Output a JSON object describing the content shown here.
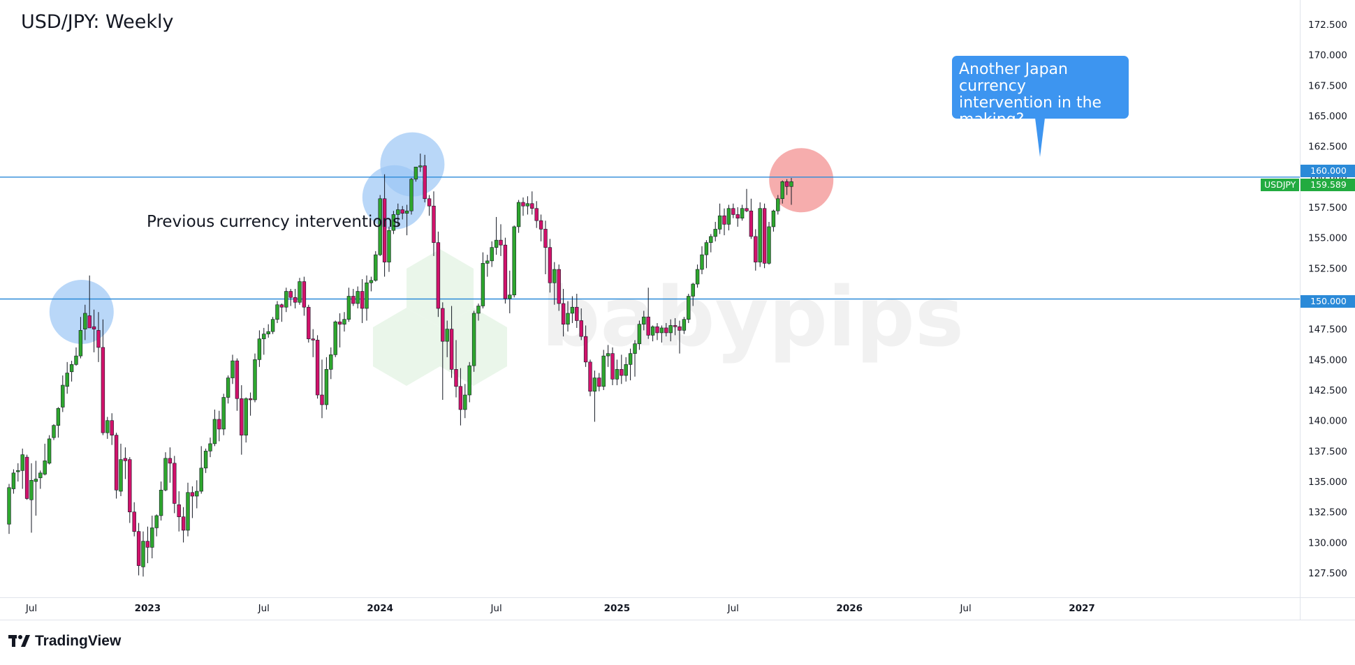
{
  "window": {
    "title": "USD/JPY: Weekly"
  },
  "annotations": {
    "previous": "Previous currency interventions",
    "callout": "Another Japan currency intervention in the making?"
  },
  "brand": {
    "name": "TradingView"
  },
  "watermark": {
    "text": "babypips"
  },
  "price_labels": {
    "symbol": "USDJPY",
    "current": "159.589",
    "upper_level": "160.000",
    "lower_level": "150.000"
  },
  "colors": {
    "up": "#2ea62e",
    "down": "#d1126b",
    "level_line": "#2b8ad8",
    "callout": "#3d95f0",
    "highlight_blue": "#9bc6f5",
    "highlight_red": "#f28a8a",
    "last_price": "#22ab40"
  },
  "chart_data": {
    "type": "candlestick",
    "title": "USD/JPY: Weekly",
    "ylim": [
      125.5,
      174.5
    ],
    "y_ticks": [
      "127.500",
      "130.000",
      "132.500",
      "135.000",
      "137.500",
      "140.000",
      "142.500",
      "145.000",
      "147.500",
      "150.000",
      "152.500",
      "155.000",
      "157.500",
      "160.000",
      "162.500",
      "165.000",
      "167.500",
      "170.000",
      "172.500"
    ],
    "x_ticks": [
      {
        "label": "Jul",
        "week": 5
      },
      {
        "label": "2023",
        "week": 31
      },
      {
        "label": "Jul",
        "week": 57
      },
      {
        "label": "2024",
        "week": 83
      },
      {
        "label": "Jul",
        "week": 109
      },
      {
        "label": "2025",
        "week": 136
      },
      {
        "label": "Jul",
        "week": 162
      },
      {
        "label": "2026",
        "week": 188
      },
      {
        "label": "Jul",
        "week": 214
      },
      {
        "label": "2027",
        "week": 240
      }
    ],
    "levels": [
      160.0,
      150.0
    ],
    "last_price": 159.589,
    "series": [
      {
        "ohlc": [
          [
            131.5,
            134.8,
            130.7,
            134.5
          ],
          [
            134.4,
            136.0,
            134.0,
            135.7
          ],
          [
            135.8,
            136.5,
            135.0,
            135.9
          ],
          [
            135.9,
            137.7,
            134.4,
            137.2
          ],
          [
            137.0,
            137.2,
            133.5,
            133.6
          ],
          [
            133.5,
            136.5,
            130.8,
            135.1
          ],
          [
            135.0,
            136.7,
            132.2,
            135.2
          ],
          [
            135.3,
            135.9,
            134.4,
            135.7
          ],
          [
            135.6,
            138.1,
            135.5,
            136.7
          ],
          [
            136.5,
            138.8,
            136.4,
            138.5
          ],
          [
            138.6,
            139.7,
            138.4,
            139.6
          ],
          [
            139.6,
            141.1,
            138.6,
            141.0
          ],
          [
            141.1,
            143.7,
            140.7,
            142.9
          ],
          [
            142.8,
            144.8,
            142.2,
            143.9
          ],
          [
            144.0,
            144.9,
            143.2,
            144.6
          ],
          [
            144.6,
            146.0,
            144.5,
            145.3
          ],
          [
            145.3,
            148.5,
            145.1,
            147.4
          ],
          [
            147.5,
            149.5,
            146.6,
            148.8
          ],
          [
            148.6,
            151.9,
            147.9,
            147.6
          ],
          [
            147.7,
            149.1,
            145.6,
            147.5
          ],
          [
            147.4,
            148.9,
            144.8,
            146.0
          ],
          [
            146.0,
            148.3,
            138.8,
            139.0
          ],
          [
            139.0,
            140.3,
            138.5,
            140.0
          ],
          [
            140.0,
            140.6,
            138.0,
            138.8
          ],
          [
            138.8,
            139.0,
            133.6,
            134.3
          ],
          [
            134.2,
            138.1,
            133.8,
            136.8
          ],
          [
            136.9,
            137.8,
            135.2,
            136.7
          ],
          [
            136.8,
            137.0,
            131.6,
            132.5
          ],
          [
            132.5,
            133.3,
            130.5,
            130.9
          ],
          [
            130.9,
            131.6,
            127.3,
            128.1
          ],
          [
            128.0,
            130.9,
            127.2,
            130.1
          ],
          [
            130.1,
            131.3,
            128.3,
            129.6
          ],
          [
            129.6,
            132.2,
            128.7,
            131.2
          ],
          [
            131.2,
            132.3,
            130.5,
            132.2
          ],
          [
            132.2,
            135.0,
            131.8,
            134.3
          ],
          [
            134.3,
            137.4,
            134.2,
            136.9
          ],
          [
            136.9,
            137.8,
            134.9,
            136.5
          ],
          [
            136.5,
            137.1,
            132.4,
            133.2
          ],
          [
            133.1,
            134.2,
            130.9,
            132.1
          ],
          [
            132.1,
            132.9,
            130.0,
            131.0
          ],
          [
            131.0,
            134.9,
            130.5,
            134.1
          ],
          [
            134.1,
            134.6,
            132.0,
            133.8
          ],
          [
            133.8,
            135.1,
            132.8,
            134.2
          ],
          [
            134.2,
            137.9,
            134.0,
            136.1
          ],
          [
            136.1,
            137.7,
            135.7,
            137.5
          ],
          [
            137.5,
            138.6,
            137.0,
            138.1
          ],
          [
            138.1,
            140.9,
            137.9,
            140.1
          ],
          [
            140.1,
            140.8,
            138.3,
            139.3
          ],
          [
            139.3,
            142.2,
            138.8,
            141.9
          ],
          [
            141.9,
            143.7,
            141.4,
            143.5
          ],
          [
            143.5,
            145.4,
            143.0,
            144.9
          ],
          [
            144.9,
            145.1,
            140.8,
            141.8
          ],
          [
            141.8,
            142.9,
            137.2,
            138.8
          ],
          [
            138.8,
            141.9,
            138.2,
            141.8
          ],
          [
            141.8,
            142.3,
            140.4,
            141.7
          ],
          [
            141.7,
            145.5,
            141.5,
            145.0
          ],
          [
            145.0,
            147.4,
            144.4,
            146.7
          ],
          [
            146.7,
            147.6,
            145.4,
            147.1
          ],
          [
            147.1,
            147.9,
            146.8,
            147.3
          ],
          [
            147.3,
            148.5,
            147.1,
            148.3
          ],
          [
            148.3,
            149.8,
            148.0,
            149.5
          ],
          [
            149.5,
            149.6,
            148.1,
            149.3
          ],
          [
            149.3,
            150.9,
            148.9,
            150.6
          ],
          [
            150.6,
            150.8,
            149.4,
            150.1
          ],
          [
            150.1,
            150.8,
            149.2,
            149.7
          ],
          [
            149.7,
            151.7,
            149.5,
            151.4
          ],
          [
            151.4,
            151.8,
            148.6,
            149.3
          ],
          [
            149.3,
            149.5,
            146.4,
            146.7
          ],
          [
            146.7,
            147.5,
            145.2,
            146.6
          ],
          [
            146.6,
            147.0,
            141.8,
            142.1
          ],
          [
            142.1,
            145.0,
            140.2,
            141.3
          ],
          [
            141.3,
            145.2,
            140.9,
            144.2
          ],
          [
            144.2,
            146.0,
            143.4,
            145.4
          ],
          [
            145.4,
            148.2,
            145.2,
            148.1
          ],
          [
            148.1,
            148.8,
            146.0,
            147.9
          ],
          [
            147.9,
            148.9,
            147.3,
            148.3
          ],
          [
            148.3,
            150.9,
            148.1,
            150.2
          ],
          [
            150.2,
            150.8,
            149.4,
            149.6
          ],
          [
            149.6,
            151.0,
            149.2,
            150.6
          ],
          [
            150.6,
            151.6,
            148.0,
            149.2
          ],
          [
            149.2,
            151.9,
            148.2,
            151.3
          ],
          [
            151.3,
            151.8,
            150.6,
            151.5
          ],
          [
            151.5,
            153.9,
            151.4,
            153.6
          ],
          [
            153.6,
            158.5,
            153.5,
            158.2
          ],
          [
            158.2,
            160.2,
            151.8,
            153.0
          ],
          [
            153.0,
            155.9,
            152.2,
            155.6
          ],
          [
            155.6,
            157.2,
            155.3,
            156.9
          ],
          [
            156.9,
            157.8,
            155.9,
            157.3
          ],
          [
            157.3,
            157.6,
            156.5,
            157.0
          ],
          [
            157.0,
            157.7,
            155.2,
            157.2
          ],
          [
            157.2,
            159.9,
            156.9,
            159.8
          ],
          [
            159.8,
            160.7,
            159.6,
            160.8
          ],
          [
            160.8,
            161.9,
            160.4,
            160.9
          ],
          [
            160.9,
            161.8,
            157.9,
            158.2
          ],
          [
            158.2,
            158.5,
            156.8,
            157.6
          ],
          [
            157.6,
            158.8,
            153.5,
            154.6
          ],
          [
            154.6,
            155.5,
            148.5,
            149.2
          ],
          [
            149.2,
            149.7,
            141.7,
            146.5
          ],
          [
            146.5,
            148.2,
            145.2,
            147.5
          ],
          [
            147.5,
            149.4,
            143.5,
            144.2
          ],
          [
            144.2,
            146.6,
            141.9,
            142.8
          ],
          [
            142.8,
            144.3,
            139.6,
            140.9
          ],
          [
            140.9,
            143.0,
            140.2,
            142.1
          ],
          [
            142.1,
            144.8,
            141.5,
            144.5
          ],
          [
            144.5,
            149.0,
            144.0,
            148.8
          ],
          [
            148.8,
            149.6,
            148.2,
            149.4
          ],
          [
            149.4,
            153.8,
            149.2,
            152.9
          ],
          [
            152.9,
            153.6,
            151.8,
            153.1
          ],
          [
            153.1,
            154.7,
            152.6,
            154.2
          ],
          [
            154.2,
            156.7,
            153.6,
            154.8
          ],
          [
            154.8,
            156.1,
            153.5,
            154.4
          ],
          [
            154.4,
            155.0,
            149.6,
            150.0
          ],
          [
            150.0,
            152.3,
            148.8,
            150.3
          ],
          [
            150.3,
            156.0,
            150.1,
            155.9
          ],
          [
            155.9,
            158.1,
            155.4,
            157.9
          ],
          [
            157.9,
            158.3,
            156.8,
            157.6
          ],
          [
            157.6,
            158.4,
            156.9,
            157.8
          ],
          [
            157.8,
            158.8,
            156.9,
            157.4
          ],
          [
            157.4,
            158.0,
            155.8,
            156.4
          ],
          [
            156.4,
            156.9,
            154.7,
            155.7
          ],
          [
            155.7,
            156.4,
            152.0,
            154.2
          ],
          [
            154.2,
            154.9,
            150.5,
            151.3
          ],
          [
            151.3,
            153.0,
            149.5,
            152.4
          ],
          [
            152.4,
            152.8,
            149.0,
            149.6
          ],
          [
            149.6,
            150.8,
            146.9,
            147.9
          ],
          [
            147.9,
            149.8,
            147.3,
            148.8
          ],
          [
            148.8,
            150.2,
            148.0,
            149.3
          ],
          [
            149.3,
            150.4,
            147.6,
            148.2
          ],
          [
            148.2,
            149.2,
            146.6,
            146.9
          ],
          [
            146.9,
            147.8,
            144.4,
            144.8
          ],
          [
            144.8,
            145.0,
            142.0,
            142.4
          ],
          [
            142.4,
            144.1,
            139.9,
            143.5
          ],
          [
            143.5,
            143.9,
            142.4,
            142.8
          ],
          [
            142.8,
            145.8,
            142.5,
            145.3
          ],
          [
            145.3,
            146.2,
            144.4,
            145.5
          ],
          [
            145.5,
            146.0,
            142.9,
            143.4
          ],
          [
            143.4,
            145.0,
            142.9,
            144.2
          ],
          [
            144.2,
            145.4,
            143.0,
            143.7
          ],
          [
            143.7,
            145.2,
            143.2,
            144.6
          ],
          [
            144.6,
            145.9,
            143.3,
            145.5
          ],
          [
            145.5,
            146.6,
            143.6,
            146.3
          ],
          [
            146.3,
            148.2,
            145.8,
            147.9
          ],
          [
            147.9,
            149.0,
            147.4,
            148.5
          ],
          [
            148.5,
            150.9,
            146.7,
            147.0
          ],
          [
            147.0,
            147.8,
            146.5,
            147.7
          ],
          [
            147.7,
            148.0,
            146.6,
            147.2
          ],
          [
            147.2,
            147.8,
            146.4,
            147.6
          ],
          [
            147.6,
            148.0,
            146.9,
            147.2
          ],
          [
            147.2,
            148.3,
            146.5,
            147.8
          ],
          [
            147.8,
            148.4,
            147.0,
            147.7
          ],
          [
            147.7,
            148.2,
            145.5,
            147.4
          ],
          [
            147.4,
            148.5,
            147.1,
            148.3
          ],
          [
            148.3,
            150.4,
            148.0,
            150.2
          ],
          [
            150.2,
            151.3,
            149.4,
            151.2
          ],
          [
            151.2,
            152.8,
            150.9,
            152.4
          ],
          [
            152.4,
            154.3,
            152.0,
            153.6
          ],
          [
            153.6,
            154.8,
            152.5,
            154.6
          ],
          [
            154.6,
            155.3,
            153.8,
            155.1
          ],
          [
            155.1,
            156.3,
            154.7,
            155.7
          ],
          [
            155.7,
            157.8,
            155.3,
            156.8
          ],
          [
            156.8,
            157.4,
            155.2,
            156.1
          ],
          [
            156.1,
            157.7,
            155.6,
            157.4
          ],
          [
            157.4,
            157.8,
            156.6,
            156.9
          ],
          [
            156.9,
            157.5,
            155.9,
            156.6
          ],
          [
            156.6,
            157.7,
            156.4,
            157.4
          ],
          [
            157.4,
            159.0,
            157.1,
            157.2
          ],
          [
            157.2,
            158.2,
            154.9,
            155.1
          ],
          [
            155.1,
            155.7,
            152.3,
            153.0
          ],
          [
            153.0,
            157.9,
            152.6,
            157.4
          ],
          [
            157.4,
            157.8,
            152.5,
            152.9
          ],
          [
            152.9,
            156.3,
            152.8,
            155.9
          ],
          [
            155.9,
            157.3,
            155.5,
            157.2
          ],
          [
            157.2,
            158.5,
            156.9,
            158.2
          ],
          [
            158.2,
            159.7,
            157.8,
            159.6
          ],
          [
            159.6,
            159.8,
            158.5,
            159.2
          ],
          [
            159.2,
            159.9,
            157.7,
            159.6
          ]
        ]
      }
    ]
  }
}
